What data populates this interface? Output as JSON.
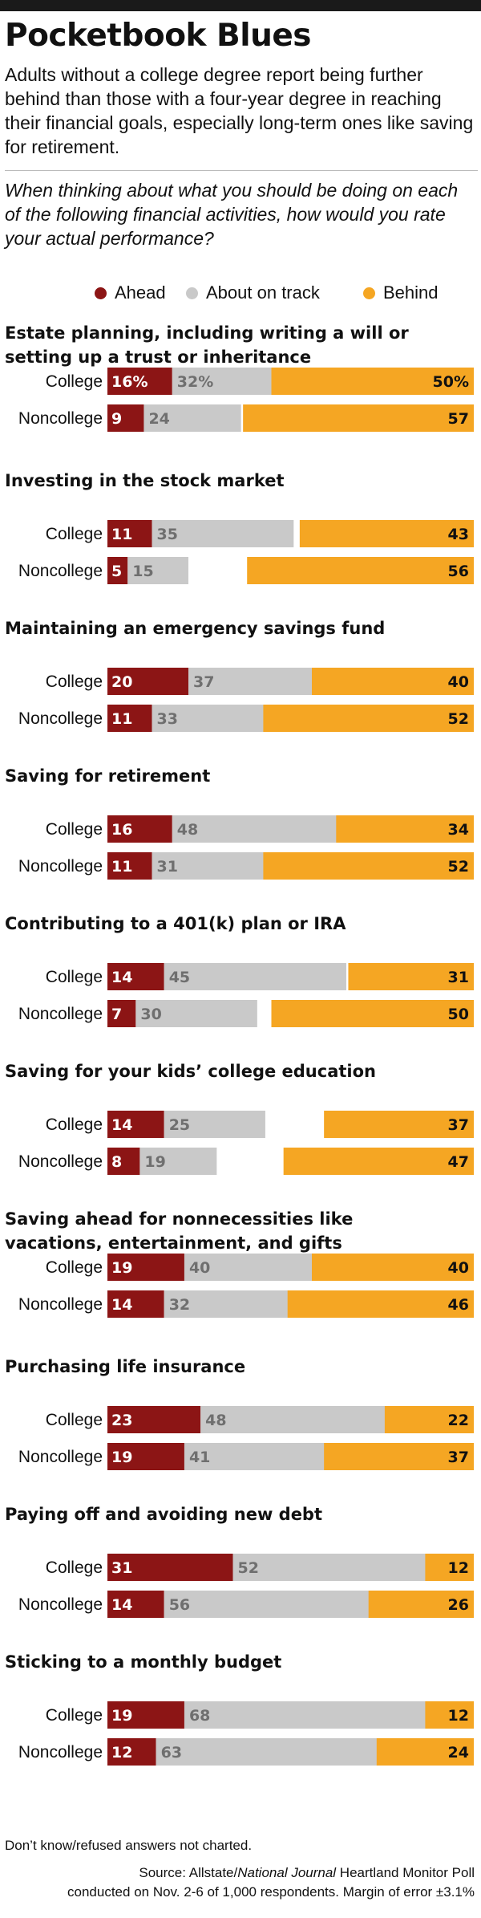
{
  "title": "Pocketbook Blues",
  "subtitle": "Adults without a college degree report being further behind than those with a four-year degree in reaching their financial goals, especially long-term ones like saving for retirement.",
  "question": "When thinking about what you should be doing on each of the following financial activities, how would you rate your actual performance?",
  "footnote": "Don’t know/refused answers not charted.",
  "source": {
    "prefix": "Source: Allstate/",
    "publication": "National Journal",
    "suffix": " Heartland Monitor Poll",
    "line2": "conducted on Nov. 2-6 of 1,000 respondents. Margin of error ±3.1%"
  },
  "colors": {
    "ahead": "#8c1515",
    "on_track": "#c9c9c9",
    "behind": "#f5a623"
  },
  "chart_data": {
    "type": "bar",
    "orientation": "horizontal",
    "stacked": "diverging",
    "unit": "%",
    "legend": [
      {
        "key": "ahead",
        "label": "Ahead"
      },
      {
        "key": "on_track",
        "label": "About on track"
      },
      {
        "key": "behind",
        "label": "Behind"
      }
    ],
    "row_labels": [
      "College",
      "Noncollege"
    ],
    "groups": [
      {
        "category": [
          "Estate planning, including writing a will or",
          "setting up a trust or inheritance"
        ],
        "rows": [
          {
            "label": "College",
            "ahead": 16,
            "on_track": 32,
            "behind": 50,
            "ahead_text": "16%",
            "on_track_text": "32%",
            "behind_text": "50%"
          },
          {
            "label": "Noncollege",
            "ahead": 9,
            "on_track": 24,
            "behind": 57,
            "ahead_text": "9",
            "on_track_text": "24",
            "behind_text": "57"
          }
        ]
      },
      {
        "category": [
          "Investing in the stock market"
        ],
        "rows": [
          {
            "label": "College",
            "ahead": 11,
            "on_track": 35,
            "behind": 43,
            "ahead_text": "11",
            "on_track_text": "35",
            "behind_text": "43"
          },
          {
            "label": "Noncollege",
            "ahead": 5,
            "on_track": 15,
            "behind": 56,
            "ahead_text": "5",
            "on_track_text": "15",
            "behind_text": "56"
          }
        ]
      },
      {
        "category": [
          "Maintaining an emergency savings fund"
        ],
        "rows": [
          {
            "label": "College",
            "ahead": 20,
            "on_track": 37,
            "behind": 40,
            "ahead_text": "20",
            "on_track_text": "37",
            "behind_text": "40"
          },
          {
            "label": "Noncollege",
            "ahead": 11,
            "on_track": 33,
            "behind": 52,
            "ahead_text": "11",
            "on_track_text": "33",
            "behind_text": "52"
          }
        ]
      },
      {
        "category": [
          "Saving for retirement"
        ],
        "rows": [
          {
            "label": "College",
            "ahead": 16,
            "on_track": 48,
            "behind": 34,
            "ahead_text": "16",
            "on_track_text": "48",
            "behind_text": "34"
          },
          {
            "label": "Noncollege",
            "ahead": 11,
            "on_track": 31,
            "behind": 52,
            "ahead_text": "11",
            "on_track_text": "31",
            "behind_text": "52"
          }
        ]
      },
      {
        "category": [
          "Contributing to a 401(k) plan or IRA"
        ],
        "rows": [
          {
            "label": "College",
            "ahead": 14,
            "on_track": 45,
            "behind": 31,
            "ahead_text": "14",
            "on_track_text": "45",
            "behind_text": "31"
          },
          {
            "label": "Noncollege",
            "ahead": 7,
            "on_track": 30,
            "behind": 50,
            "ahead_text": "7",
            "on_track_text": "30",
            "behind_text": "50"
          }
        ]
      },
      {
        "category": [
          "Saving for your kids’ college education"
        ],
        "rows": [
          {
            "label": "College",
            "ahead": 14,
            "on_track": 25,
            "behind": 37,
            "ahead_text": "14",
            "on_track_text": "25",
            "behind_text": "37"
          },
          {
            "label": "Noncollege",
            "ahead": 8,
            "on_track": 19,
            "behind": 47,
            "ahead_text": "8",
            "on_track_text": "19",
            "behind_text": "47"
          }
        ]
      },
      {
        "category": [
          "Saving ahead for nonnecessities like",
          "vacations, entertainment, and gifts"
        ],
        "rows": [
          {
            "label": "College",
            "ahead": 19,
            "on_track": 40,
            "behind": 40,
            "ahead_text": "19",
            "on_track_text": "40",
            "behind_text": "40"
          },
          {
            "label": "Noncollege",
            "ahead": 14,
            "on_track": 32,
            "behind": 46,
            "ahead_text": "14",
            "on_track_text": "32",
            "behind_text": "46"
          }
        ]
      },
      {
        "category": [
          "Purchasing life insurance"
        ],
        "rows": [
          {
            "label": "College",
            "ahead": 23,
            "on_track": 48,
            "behind": 22,
            "ahead_text": "23",
            "on_track_text": "48",
            "behind_text": "22"
          },
          {
            "label": "Noncollege",
            "ahead": 19,
            "on_track": 41,
            "behind": 37,
            "ahead_text": "19",
            "on_track_text": "41",
            "behind_text": "37"
          }
        ]
      },
      {
        "category": [
          "Paying off and avoiding new debt"
        ],
        "rows": [
          {
            "label": "College",
            "ahead": 31,
            "on_track": 52,
            "behind": 12,
            "ahead_text": "31",
            "on_track_text": "52",
            "behind_text": "12"
          },
          {
            "label": "Noncollege",
            "ahead": 14,
            "on_track": 56,
            "behind": 26,
            "ahead_text": "14",
            "on_track_text": "56",
            "behind_text": "26"
          }
        ]
      },
      {
        "category": [
          "Sticking to a monthly budget"
        ],
        "rows": [
          {
            "label": "College",
            "ahead": 19,
            "on_track": 68,
            "behind": 12,
            "ahead_text": "19",
            "on_track_text": "68",
            "behind_text": "12"
          },
          {
            "label": "Noncollege",
            "ahead": 12,
            "on_track": 63,
            "behind": 24,
            "ahead_text": "12",
            "on_track_text": "63",
            "behind_text": "24"
          }
        ]
      }
    ]
  }
}
